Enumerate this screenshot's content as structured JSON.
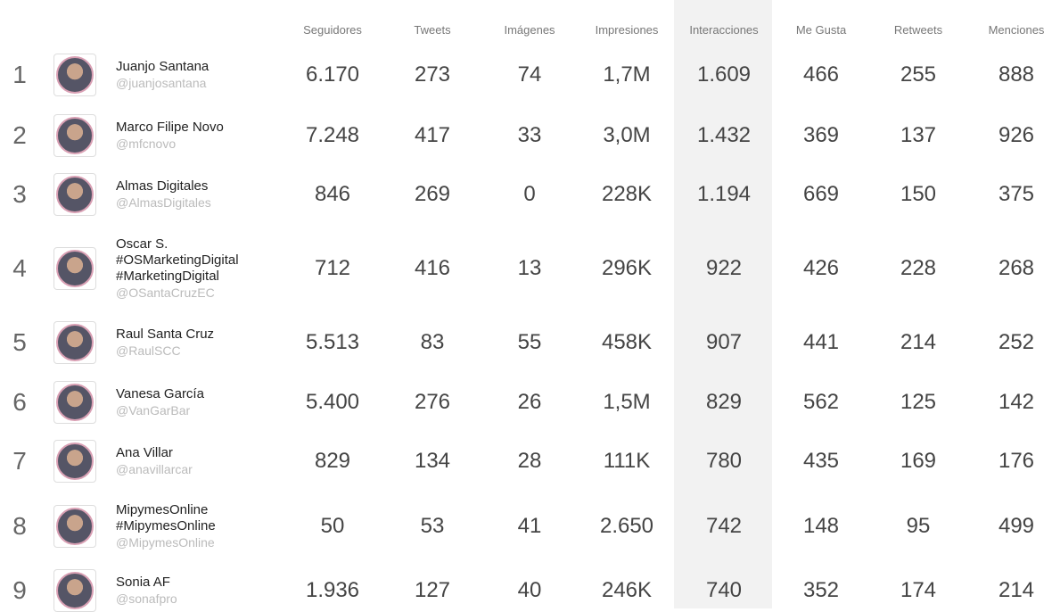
{
  "table": {
    "columns": [
      "Seguidores",
      "Tweets",
      "Imágenes",
      "Impresiones",
      "Interacciones",
      "Me Gusta",
      "Retweets",
      "Menciones"
    ],
    "rows": [
      {
        "rank": "1",
        "name": [
          "Juanjo Santana"
        ],
        "handle": "@juanjosantana",
        "cells": [
          "6.170",
          "273",
          "74",
          "1,7M",
          "1.609",
          "466",
          "255",
          "888"
        ]
      },
      {
        "rank": "2",
        "name": [
          "Marco Filipe Novo"
        ],
        "handle": "@mfcnovo",
        "cells": [
          "7.248",
          "417",
          "33",
          "3,0M",
          "1.432",
          "369",
          "137",
          "926"
        ]
      },
      {
        "rank": "3",
        "name": [
          "Almas Digitales"
        ],
        "handle": "@AlmasDigitales",
        "cells": [
          "846",
          "269",
          "0",
          "228K",
          "1.194",
          "669",
          "150",
          "375"
        ]
      },
      {
        "rank": "4",
        "name": [
          "Oscar S.",
          "#OSMarketingDigital",
          "#MarketingDigital"
        ],
        "handle": "@OSantaCruzEC",
        "cells": [
          "712",
          "416",
          "13",
          "296K",
          "922",
          "426",
          "228",
          "268"
        ]
      },
      {
        "rank": "5",
        "name": [
          "Raul Santa Cruz"
        ],
        "handle": "@RaulSCC",
        "cells": [
          "5.513",
          "83",
          "55",
          "458K",
          "907",
          "441",
          "214",
          "252"
        ]
      },
      {
        "rank": "6",
        "name": [
          "Vanesa García"
        ],
        "handle": "@VanGarBar",
        "cells": [
          "5.400",
          "276",
          "26",
          "1,5M",
          "829",
          "562",
          "125",
          "142"
        ]
      },
      {
        "rank": "7",
        "name": [
          "Ana Villar"
        ],
        "handle": "@anavillarcar",
        "cells": [
          "829",
          "134",
          "28",
          "111K",
          "780",
          "435",
          "169",
          "176"
        ]
      },
      {
        "rank": "8",
        "name": [
          "MipymesOnline",
          "#MipymesOnline"
        ],
        "handle": "@MipymesOnline",
        "cells": [
          "50",
          "53",
          "41",
          "2.650",
          "742",
          "148",
          "95",
          "499"
        ]
      },
      {
        "rank": "9",
        "name": [
          "Sonia AF"
        ],
        "handle": "@sonafpro",
        "cells": [
          "1.936",
          "127",
          "40",
          "246K",
          "740",
          "352",
          "174",
          "214"
        ]
      }
    ]
  }
}
